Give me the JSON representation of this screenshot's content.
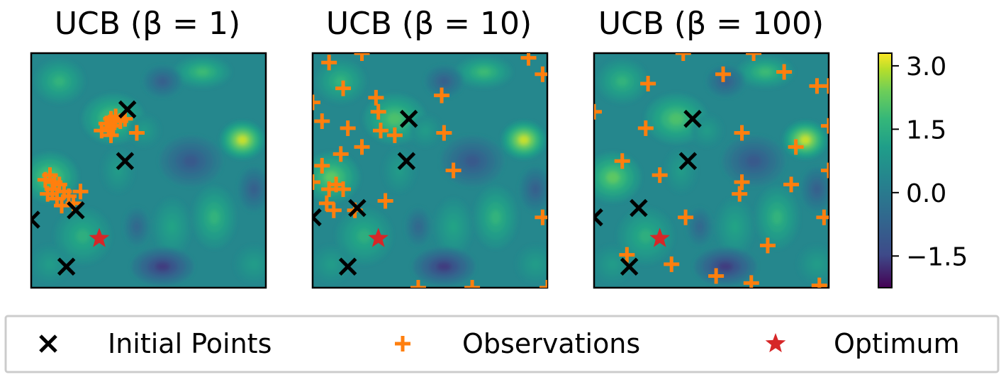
{
  "chart_data": {
    "type": "contour",
    "panels": [
      {
        "title": "UCB (β = 1)",
        "initial_points": [
          [
            0.41,
            0.24
          ],
          [
            0.4,
            0.46
          ],
          [
            0.19,
            0.67
          ],
          [
            0.0,
            0.71
          ],
          [
            0.15,
            0.91
          ]
        ],
        "observations": [
          [
            0.32,
            0.3
          ],
          [
            0.33,
            0.32
          ],
          [
            0.34,
            0.28
          ],
          [
            0.35,
            0.31
          ],
          [
            0.36,
            0.27
          ],
          [
            0.38,
            0.29
          ],
          [
            0.3,
            0.33
          ],
          [
            0.34,
            0.35
          ],
          [
            0.4,
            0.28
          ],
          [
            0.45,
            0.34
          ],
          [
            0.08,
            0.52
          ],
          [
            0.1,
            0.55
          ],
          [
            0.06,
            0.54
          ],
          [
            0.09,
            0.58
          ],
          [
            0.12,
            0.56
          ],
          [
            0.14,
            0.59
          ],
          [
            0.07,
            0.6
          ],
          [
            0.11,
            0.62
          ],
          [
            0.16,
            0.61
          ],
          [
            0.21,
            0.59
          ],
          [
            0.18,
            0.64
          ],
          [
            0.13,
            0.65
          ]
        ],
        "optimum": [
          [
            0.29,
            0.79
          ]
        ]
      },
      {
        "title": "UCB (β = 10)",
        "initial_points": [
          [
            0.41,
            0.28
          ],
          [
            0.4,
            0.46
          ],
          [
            0.19,
            0.66
          ],
          [
            0.0,
            0.7
          ],
          [
            0.15,
            0.91
          ]
        ],
        "observations": [
          [
            0.07,
            0.04
          ],
          [
            0.21,
            0.0
          ],
          [
            0.92,
            0.02
          ],
          [
            0.98,
            0.09
          ],
          [
            0.13,
            0.15
          ],
          [
            0.27,
            0.19
          ],
          [
            0.55,
            0.18
          ],
          [
            0.0,
            0.21
          ],
          [
            0.28,
            0.25
          ],
          [
            0.04,
            0.29
          ],
          [
            0.15,
            0.32
          ],
          [
            0.29,
            0.33
          ],
          [
            0.35,
            0.35
          ],
          [
            0.56,
            0.34
          ],
          [
            0.21,
            0.4
          ],
          [
            0.12,
            0.43
          ],
          [
            0.04,
            0.48
          ],
          [
            0.6,
            0.5
          ],
          [
            0.0,
            0.55
          ],
          [
            0.1,
            0.56
          ],
          [
            0.07,
            0.58
          ],
          [
            0.13,
            0.58
          ],
          [
            0.06,
            0.64
          ],
          [
            0.18,
            0.67
          ],
          [
            0.31,
            0.63
          ],
          [
            0.09,
            0.67
          ],
          [
            0.98,
            0.7
          ],
          [
            0.45,
            1.0
          ],
          [
            0.68,
            1.0
          ],
          [
            1.0,
            1.0
          ]
        ],
        "optimum": [
          [
            0.28,
            0.79
          ]
        ]
      },
      {
        "title": "UCB (β = 100)",
        "initial_points": [
          [
            0.42,
            0.28
          ],
          [
            0.4,
            0.46
          ],
          [
            0.19,
            0.66
          ],
          [
            0.0,
            0.7
          ],
          [
            0.15,
            0.91
          ]
        ],
        "observations": [
          [
            0.38,
            0.0
          ],
          [
            0.68,
            0.0
          ],
          [
            0.55,
            0.09
          ],
          [
            0.95,
            0.14
          ],
          [
            0.23,
            0.13
          ],
          [
            0.81,
            0.08
          ],
          [
            1.0,
            0.14
          ],
          [
            0.0,
            0.25
          ],
          [
            0.22,
            0.32
          ],
          [
            0.63,
            0.34
          ],
          [
            1.0,
            0.31
          ],
          [
            0.86,
            0.4
          ],
          [
            0.12,
            0.46
          ],
          [
            0.28,
            0.52
          ],
          [
            1.0,
            0.5
          ],
          [
            0.63,
            0.55
          ],
          [
            0.62,
            0.6
          ],
          [
            0.84,
            0.56
          ],
          [
            0.39,
            0.7
          ],
          [
            0.98,
            0.7
          ],
          [
            0.14,
            0.86
          ],
          [
            0.33,
            0.9
          ],
          [
            0.74,
            0.82
          ],
          [
            0.52,
            0.95
          ],
          [
            0.67,
            0.98
          ],
          [
            0.96,
            0.99
          ]
        ],
        "optimum": [
          [
            0.28,
            0.79
          ]
        ]
      }
    ],
    "colorbar": {
      "ticks": [
        "3.0",
        "1.5",
        "0.0",
        "−1.5"
      ],
      "tick_values": [
        3.0,
        1.5,
        0.0,
        -1.5
      ],
      "range": [
        -2.25,
        3.3
      ],
      "colormap": "viridis"
    },
    "legend": {
      "items": [
        {
          "label": "Initial Points",
          "marker": "x",
          "color": "#000000"
        },
        {
          "label": "Observations",
          "marker": "+",
          "color": "#ff7f0e"
        },
        {
          "label": "Optimum",
          "marker": "star",
          "color": "#d62728"
        }
      ],
      "placement": "bottom"
    },
    "blobs": [
      {
        "cx": 0.9,
        "cy": 0.37,
        "rx": 0.07,
        "ry": 0.06,
        "level": 3.0
      },
      {
        "cx": 0.08,
        "cy": 0.53,
        "rx": 0.09,
        "ry": 0.08,
        "level": 2.2
      },
      {
        "cx": 0.35,
        "cy": 0.28,
        "rx": 0.1,
        "ry": 0.08,
        "level": 2.0
      },
      {
        "cx": 0.73,
        "cy": 0.08,
        "rx": 0.09,
        "ry": 0.05,
        "level": 1.8
      },
      {
        "cx": 0.12,
        "cy": 0.12,
        "rx": 0.08,
        "ry": 0.07,
        "level": 1.6
      },
      {
        "cx": 0.78,
        "cy": 0.7,
        "rx": 0.07,
        "ry": 0.1,
        "level": 1.6
      },
      {
        "cx": 0.22,
        "cy": 0.78,
        "rx": 0.09,
        "ry": 0.09,
        "level": 1.5
      },
      {
        "cx": 0.6,
        "cy": 0.74,
        "rx": 0.06,
        "ry": 0.09,
        "level": 1.2
      },
      {
        "cx": 0.37,
        "cy": 0.5,
        "rx": 0.05,
        "ry": 0.07,
        "level": 1.0
      },
      {
        "cx": 0.48,
        "cy": 0.33,
        "rx": 0.05,
        "ry": 0.05,
        "level": 1.0
      },
      {
        "cx": 0.95,
        "cy": 0.9,
        "rx": 0.06,
        "ry": 0.06,
        "level": 1.0
      },
      {
        "cx": 0.08,
        "cy": 0.9,
        "rx": 0.06,
        "ry": 0.06,
        "level": 1.0
      },
      {
        "cx": 0.68,
        "cy": 0.46,
        "rx": 0.1,
        "ry": 0.08,
        "level": -1.0
      },
      {
        "cx": 0.56,
        "cy": 0.91,
        "rx": 0.1,
        "ry": 0.06,
        "level": -1.6
      },
      {
        "cx": 0.56,
        "cy": 0.12,
        "rx": 0.06,
        "ry": 0.05,
        "level": -0.8
      },
      {
        "cx": 0.95,
        "cy": 0.58,
        "rx": 0.05,
        "ry": 0.07,
        "level": -0.8
      },
      {
        "cx": 0.45,
        "cy": 0.74,
        "rx": 0.04,
        "ry": 0.06,
        "level": -0.6
      }
    ]
  }
}
